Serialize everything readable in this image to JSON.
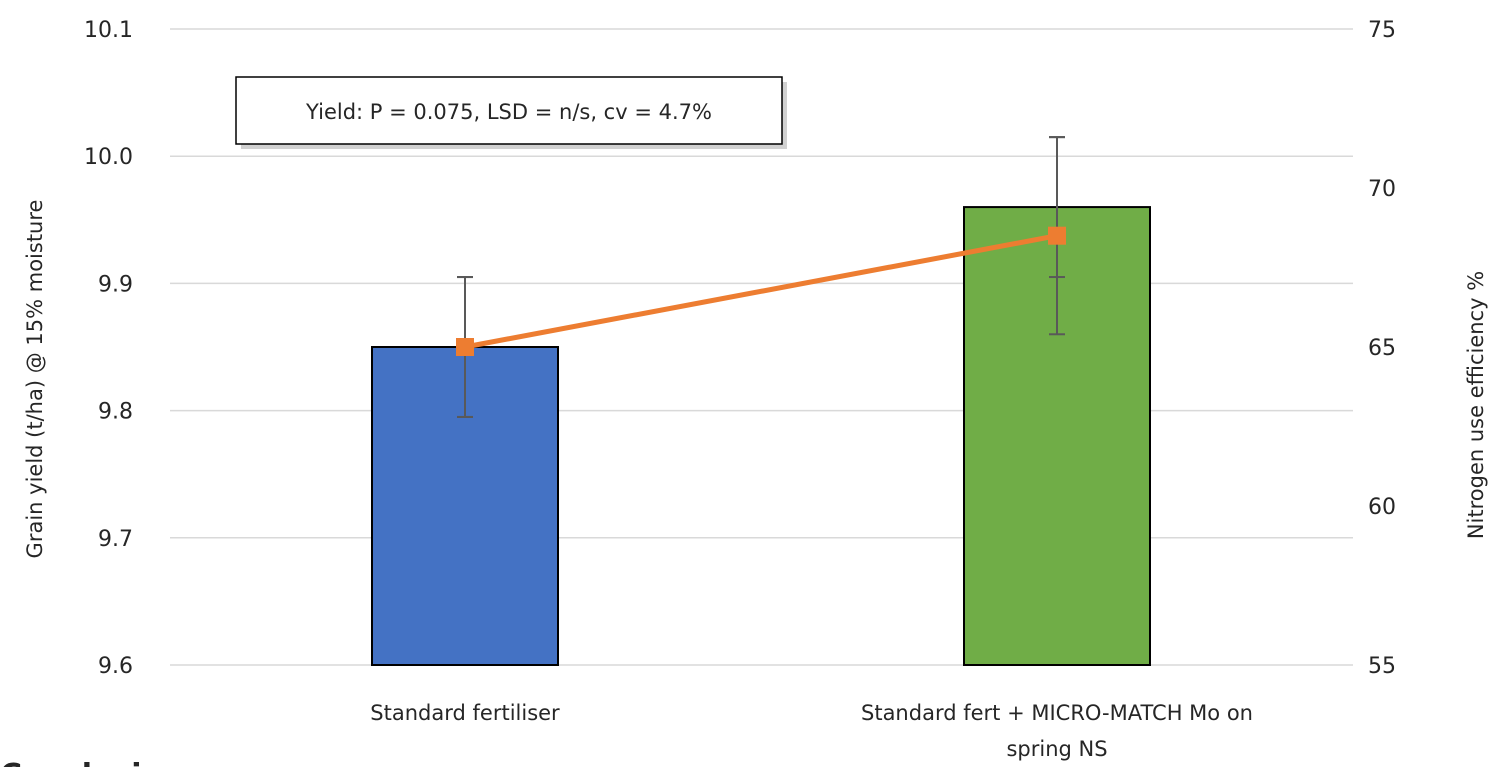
{
  "chart_data": {
    "type": "bar",
    "categories": [
      "Standard fertiliser",
      "Standard fert + MICRO-MATCH Mo on spring NS"
    ],
    "category_lines": [
      [
        "Standard fertiliser"
      ],
      [
        "Standard fert + MICRO-MATCH Mo on",
        "spring NS"
      ]
    ],
    "series": [
      {
        "kind": "bar",
        "axis": "left",
        "values": [
          9.85,
          9.96
        ],
        "colors": [
          "#4472C4",
          "#70AD47"
        ],
        "error": [
          0.055,
          0.055
        ]
      },
      {
        "kind": "line",
        "axis": "right",
        "values": [
          65.0,
          68.5
        ],
        "color": "#ED7D31",
        "error": [
          2.2,
          3.1
        ]
      }
    ],
    "y_left": {
      "label": "Grain yield (t/ha) @ 15% moisture",
      "range": [
        9.6,
        10.1
      ],
      "ticks": [
        "9.6",
        "9.7",
        "9.8",
        "9.9",
        "10.0",
        "10.1"
      ]
    },
    "y_right": {
      "label": "Nitrogen use efficiency %",
      "range": [
        55,
        75
      ],
      "ticks": [
        "55",
        "60",
        "65",
        "70",
        "75"
      ]
    },
    "annotation": "Yield: P = 0.075, LSD = n/s, cv = 4.7%",
    "grid": true,
    "legend": "none"
  },
  "footer_fragment": "Conclusions",
  "colors": {
    "grid": "#D9D9D9",
    "error_bar": "#595959",
    "footer_text": "#70AD47"
  }
}
